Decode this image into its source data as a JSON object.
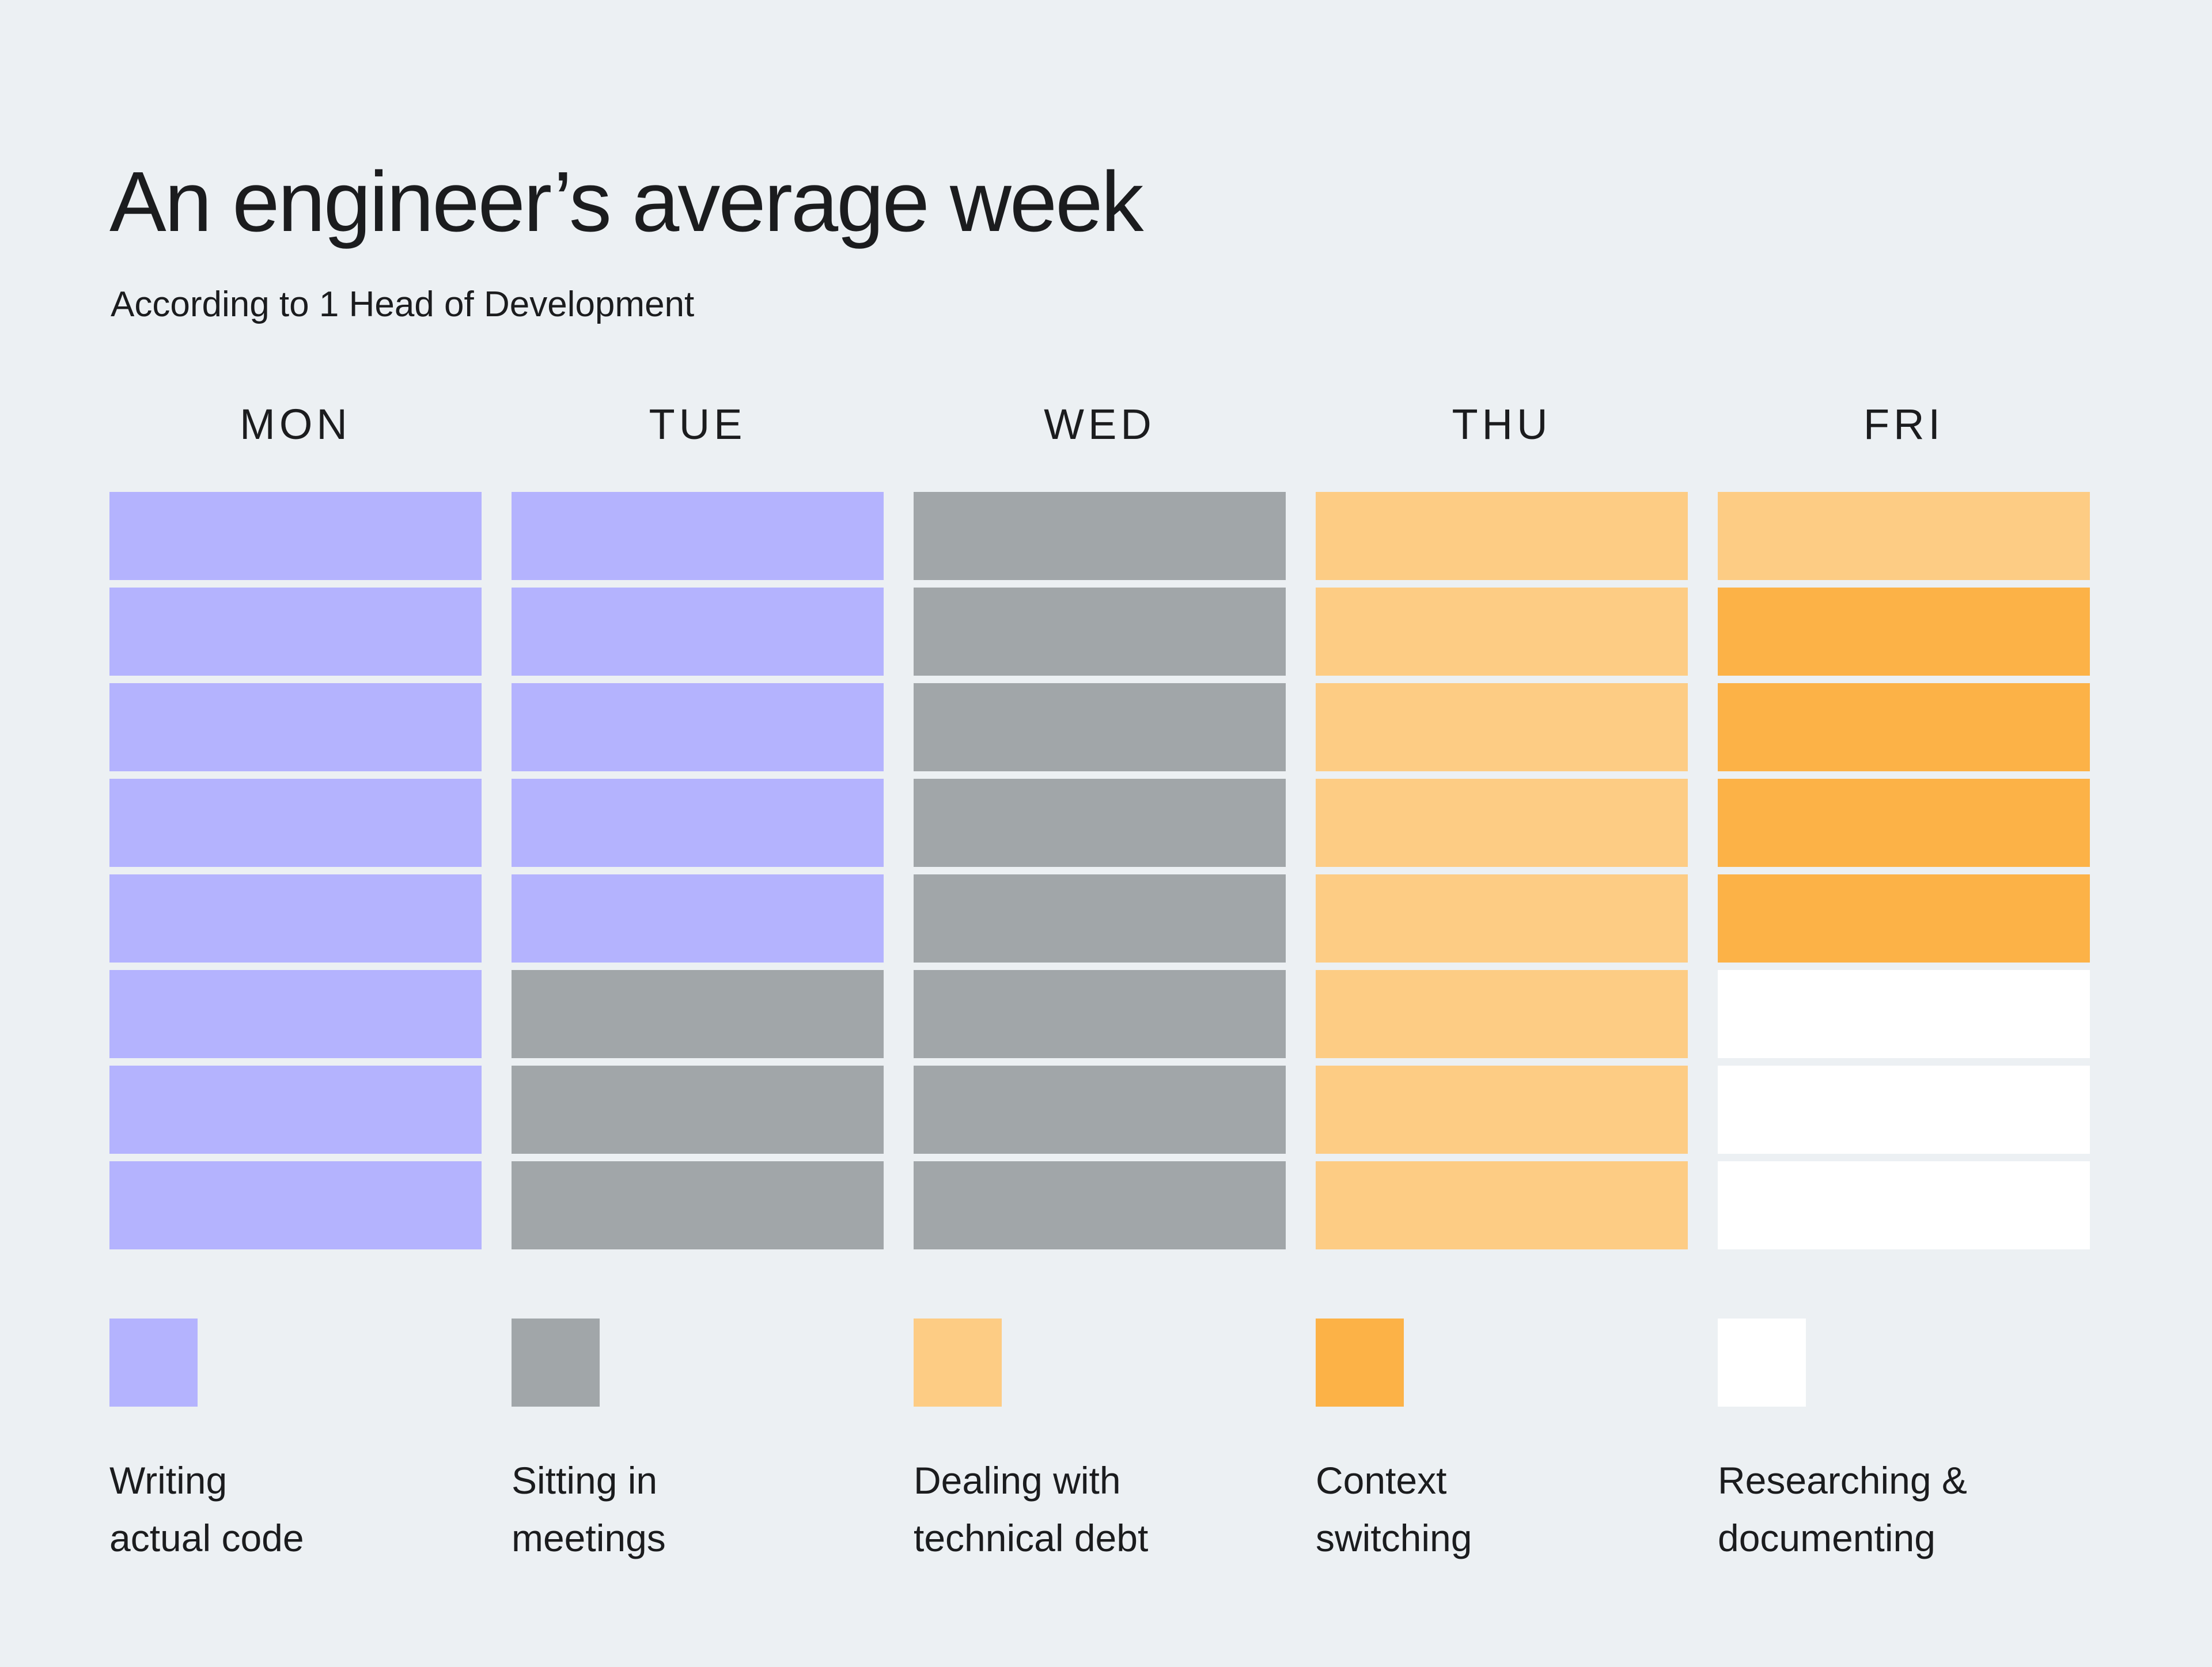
{
  "header": {
    "title": "An engineer’s average week",
    "subtitle": "According to 1 Head of Development"
  },
  "colors": {
    "background": "#ECF0F3",
    "text": "#1B1C1E",
    "writing_code": "#B4B3FE",
    "meetings": "#A1A6A9",
    "technical_debt": "#FDCC84",
    "context_switching": "#FCB247",
    "researching": "#FFFFFF"
  },
  "chart_data": {
    "type": "heatmap",
    "title": "An engineer’s average week",
    "subtitle": "According to 1 Head of Development",
    "columns": [
      "MON",
      "TUE",
      "WED",
      "THU",
      "FRI"
    ],
    "rows_per_day": 8,
    "legend_position": "bottom",
    "grid": false,
    "legend": [
      {
        "id": "code",
        "label": "Writing actual code",
        "label_lines": [
          "Writing",
          "actual code"
        ],
        "color": "#B4B3FE"
      },
      {
        "id": "meetings",
        "label": "Sitting in meetings",
        "label_lines": [
          "Sitting in",
          "meetings"
        ],
        "color": "#A1A6A9"
      },
      {
        "id": "debt",
        "label": "Dealing with technical debt",
        "label_lines": [
          "Dealing with",
          "technical debt"
        ],
        "color": "#FDCC84"
      },
      {
        "id": "context",
        "label": "Context switching",
        "label_lines": [
          "Context",
          "switching"
        ],
        "color": "#FCB247"
      },
      {
        "id": "research",
        "label": "Researching & documenting",
        "label_lines": [
          "Researching &",
          "documenting"
        ],
        "color": "#FFFFFF"
      }
    ],
    "cells": {
      "MON": [
        "code",
        "code",
        "code",
        "code",
        "code",
        "code",
        "code",
        "code"
      ],
      "TUE": [
        "code",
        "code",
        "code",
        "code",
        "code",
        "meetings",
        "meetings",
        "meetings"
      ],
      "WED": [
        "meetings",
        "meetings",
        "meetings",
        "meetings",
        "meetings",
        "meetings",
        "meetings",
        "meetings"
      ],
      "THU": [
        "debt",
        "debt",
        "debt",
        "debt",
        "debt",
        "debt",
        "debt",
        "debt"
      ],
      "FRI": [
        "debt",
        "context",
        "context",
        "context",
        "context",
        "research",
        "research",
        "research"
      ]
    },
    "block_counts": {
      "MON": {
        "code": 8
      },
      "TUE": {
        "code": 5,
        "meetings": 3
      },
      "WED": {
        "meetings": 8
      },
      "THU": {
        "debt": 8
      },
      "FRI": {
        "debt": 1,
        "context": 4,
        "research": 3
      }
    }
  }
}
